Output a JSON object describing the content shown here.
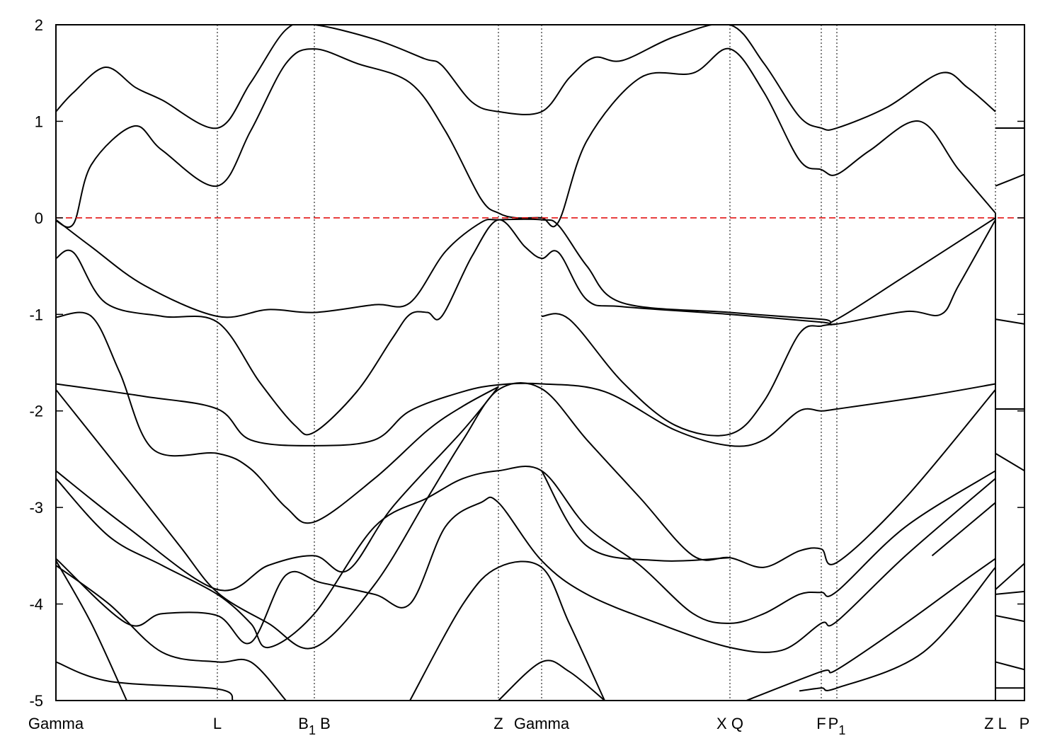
{
  "chart_data": {
    "type": "line",
    "title": "",
    "xlabel": "",
    "ylabel": "",
    "xlim": [
      0,
      5.472
    ],
    "ylim": [
      -5,
      2
    ],
    "yticks": [
      2,
      1,
      0,
      -1,
      -2,
      -3,
      -4,
      -5
    ],
    "grid": false,
    "fermi_level": 0,
    "colors": {
      "bands": "#000000",
      "fermi": "#e00000",
      "symmetry_lines": "#000000"
    },
    "xticks": [
      {
        "k": 0,
        "label": "Gamma",
        "sub": ""
      },
      {
        "k": 0.912,
        "label": "L",
        "sub": ""
      },
      {
        "k": 1.46,
        "label": "B",
        "sub": "1",
        "suffix": " B"
      },
      {
        "k": 2.5,
        "label": "Z",
        "sub": ""
      },
      {
        "k": 2.744,
        "label": "Gamma",
        "sub": ""
      },
      {
        "k": 3.808,
        "label": "X Q",
        "sub": ""
      },
      {
        "k": 4.324,
        "label": "F",
        "sub": ""
      },
      {
        "k": 4.412,
        "label": "P",
        "sub": "1"
      },
      {
        "k": 5.308,
        "label": "Z L",
        "sub": ""
      },
      {
        "k": 5.472,
        "label": "P",
        "sub": ""
      }
    ],
    "bands": [
      [
        [
          0,
          1.1
        ],
        [
          0.1,
          1.3
        ],
        [
          0.28,
          1.56
        ],
        [
          0.45,
          1.35
        ],
        [
          0.6,
          1.22
        ],
        [
          0.912,
          0.93
        ],
        [
          1.1,
          1.4
        ],
        [
          1.3,
          1.95
        ],
        [
          1.46,
          2.0
        ],
        [
          1.8,
          1.85
        ],
        [
          2.08,
          1.65
        ],
        [
          2.18,
          1.58
        ],
        [
          2.35,
          1.2
        ],
        [
          2.5,
          1.1
        ],
        [
          2.744,
          1.1
        ],
        [
          2.9,
          1.45
        ],
        [
          3.04,
          1.66
        ],
        [
          3.2,
          1.63
        ],
        [
          3.5,
          1.88
        ],
        [
          3.808,
          2.0
        ],
        [
          4.0,
          1.6
        ],
        [
          4.2,
          1.05
        ],
        [
          4.324,
          0.93
        ],
        [
          4.412,
          0.93
        ],
        [
          4.7,
          1.15
        ],
        [
          5.0,
          1.5
        ],
        [
          5.15,
          1.35
        ],
        [
          5.308,
          1.1
        ]
      ],
      [
        [
          0,
          -0.03
        ],
        [
          0.1,
          -0.06
        ],
        [
          0.2,
          0.55
        ],
        [
          0.44,
          0.95
        ],
        [
          0.6,
          0.7
        ],
        [
          0.912,
          0.33
        ],
        [
          1.1,
          0.9
        ],
        [
          1.3,
          1.6
        ],
        [
          1.46,
          1.75
        ],
        [
          1.7,
          1.6
        ],
        [
          2.0,
          1.4
        ],
        [
          2.2,
          0.9
        ],
        [
          2.4,
          0.2
        ],
        [
          2.5,
          0.05
        ],
        [
          2.6,
          0.0
        ],
        [
          2.744,
          0.0
        ],
        [
          2.84,
          -0.04
        ],
        [
          3.0,
          0.8
        ],
        [
          3.3,
          1.45
        ],
        [
          3.6,
          1.5
        ],
        [
          3.808,
          1.75
        ],
        [
          4.0,
          1.3
        ],
        [
          4.2,
          0.6
        ],
        [
          4.324,
          0.5
        ],
        [
          4.412,
          0.45
        ],
        [
          4.6,
          0.7
        ],
        [
          4.88,
          1.0
        ],
        [
          5.1,
          0.5
        ],
        [
          5.308,
          0.05
        ]
      ],
      [
        [
          0,
          -0.02
        ],
        [
          0.2,
          -0.3
        ],
        [
          0.5,
          -0.7
        ],
        [
          0.912,
          -1.02
        ],
        [
          1.2,
          -0.95
        ],
        [
          1.46,
          -0.98
        ],
        [
          1.8,
          -0.9
        ],
        [
          2.0,
          -0.88
        ],
        [
          2.2,
          -0.35
        ],
        [
          2.4,
          -0.05
        ],
        [
          2.5,
          -0.02
        ],
        [
          2.744,
          -0.02
        ],
        [
          2.84,
          -0.08
        ],
        [
          3.0,
          -0.5
        ],
        [
          3.2,
          -0.88
        ],
        [
          3.808,
          -0.98
        ],
        [
          4.324,
          -1.05
        ],
        [
          4.412,
          -1.05
        ],
        [
          4.8,
          -0.6
        ],
        [
          5.308,
          0.0
        ]
      ],
      [
        [
          0,
          -0.42
        ],
        [
          0.1,
          -0.36
        ],
        [
          0.28,
          -0.88
        ],
        [
          0.6,
          -1.02
        ],
        [
          0.912,
          -1.08
        ],
        [
          1.15,
          -1.7
        ],
        [
          1.35,
          -2.15
        ],
        [
          1.46,
          -2.22
        ],
        [
          1.7,
          -1.8
        ],
        [
          1.9,
          -1.25
        ],
        [
          2.0,
          -1.0
        ],
        [
          2.1,
          -0.98
        ],
        [
          2.18,
          -1.02
        ],
        [
          2.35,
          -0.4
        ],
        [
          2.5,
          -0.02
        ],
        [
          2.65,
          -0.3
        ],
        [
          2.744,
          -0.42
        ],
        [
          2.84,
          -0.36
        ],
        [
          3.0,
          -0.85
        ],
        [
          3.2,
          -0.92
        ],
        [
          3.808,
          -1.0
        ],
        [
          4.324,
          -1.08
        ],
        [
          4.412,
          -1.1
        ],
        [
          4.8,
          -0.97
        ],
        [
          5.0,
          -1.0
        ],
        [
          5.1,
          -0.7
        ],
        [
          5.308,
          -0.02
        ]
      ],
      [
        [
          0,
          -1.03
        ],
        [
          0.2,
          -1.02
        ],
        [
          0.36,
          -1.6
        ],
        [
          0.55,
          -2.4
        ],
        [
          0.912,
          -2.44
        ],
        [
          1.1,
          -2.6
        ],
        [
          1.3,
          -3.0
        ],
        [
          1.46,
          -3.15
        ],
        [
          1.8,
          -2.7
        ],
        [
          2.1,
          -2.2
        ],
        [
          2.3,
          -1.95
        ],
        [
          2.5,
          -1.75
        ]
      ],
      [
        [
          2.744,
          -1.02
        ],
        [
          2.9,
          -1.05
        ],
        [
          3.2,
          -1.7
        ],
        [
          3.5,
          -2.15
        ],
        [
          3.808,
          -2.24
        ],
        [
          4.0,
          -1.9
        ],
        [
          4.2,
          -1.2
        ],
        [
          4.324,
          -1.12
        ],
        [
          4.412,
          -1.1
        ]
      ],
      [
        [
          0,
          -1.72
        ],
        [
          0.5,
          -1.85
        ],
        [
          0.912,
          -1.98
        ],
        [
          1.1,
          -2.3
        ],
        [
          1.46,
          -2.36
        ],
        [
          1.8,
          -2.3
        ],
        [
          2.0,
          -2.0
        ],
        [
          2.3,
          -1.8
        ],
        [
          2.5,
          -1.73
        ],
        [
          2.744,
          -1.72
        ],
        [
          3.1,
          -1.8
        ],
        [
          3.5,
          -2.2
        ],
        [
          3.808,
          -2.36
        ],
        [
          4.0,
          -2.3
        ],
        [
          4.2,
          -2.0
        ],
        [
          4.324,
          -2.0
        ],
        [
          4.412,
          -1.98
        ],
        [
          4.9,
          -1.85
        ],
        [
          5.308,
          -1.72
        ]
      ],
      [
        [
          0,
          -1.78
        ],
        [
          0.4,
          -2.7
        ],
        [
          0.7,
          -3.4
        ],
        [
          0.912,
          -3.88
        ],
        [
          1.2,
          -4.2
        ],
        [
          1.46,
          -4.45
        ],
        [
          1.8,
          -3.8
        ],
        [
          2.1,
          -2.9
        ],
        [
          2.3,
          -2.3
        ],
        [
          2.5,
          -1.78
        ],
        [
          2.744,
          -1.77
        ],
        [
          3.0,
          -2.3
        ],
        [
          3.3,
          -2.9
        ],
        [
          3.6,
          -3.5
        ],
        [
          3.808,
          -3.52
        ],
        [
          4.0,
          -3.62
        ],
        [
          4.2,
          -3.45
        ],
        [
          4.324,
          -3.43
        ],
        [
          4.412,
          -3.57
        ],
        [
          4.8,
          -2.9
        ],
        [
          5.308,
          -1.78
        ]
      ],
      [
        [
          0,
          -2.62
        ],
        [
          0.4,
          -3.2
        ],
        [
          0.912,
          -3.85
        ],
        [
          1.2,
          -3.6
        ],
        [
          1.46,
          -3.5
        ],
        [
          1.65,
          -3.65
        ],
        [
          1.9,
          -3.0
        ],
        [
          2.3,
          -2.2
        ],
        [
          2.5,
          -1.75
        ]
      ],
      [
        [
          2.744,
          -2.62
        ],
        [
          3.0,
          -3.4
        ],
        [
          3.4,
          -3.55
        ],
        [
          3.808,
          -3.52
        ]
      ],
      [
        [
          0,
          -2.7
        ],
        [
          0.3,
          -3.3
        ],
        [
          0.6,
          -3.6
        ],
        [
          0.912,
          -3.9
        ],
        [
          1.1,
          -4.2
        ],
        [
          1.2,
          -4.45
        ],
        [
          1.46,
          -4.1
        ],
        [
          1.8,
          -3.2
        ],
        [
          2.1,
          -2.9
        ],
        [
          2.3,
          -2.7
        ],
        [
          2.5,
          -2.62
        ],
        [
          2.744,
          -2.62
        ],
        [
          3.0,
          -3.2
        ],
        [
          3.3,
          -3.6
        ],
        [
          3.6,
          -4.1
        ],
        [
          3.808,
          -4.2
        ],
        [
          4.0,
          -4.1
        ],
        [
          4.2,
          -3.9
        ],
        [
          4.324,
          -3.88
        ],
        [
          4.412,
          -3.87
        ],
        [
          4.8,
          -3.2
        ],
        [
          5.308,
          -2.62
        ]
      ],
      [
        [
          0,
          -3.53
        ],
        [
          0.4,
          -4.2
        ],
        [
          0.6,
          -4.1
        ],
        [
          0.912,
          -4.12
        ],
        [
          1.1,
          -4.4
        ],
        [
          1.3,
          -3.7
        ],
        [
          1.5,
          -3.78
        ],
        [
          1.8,
          -3.9
        ],
        [
          2.0,
          -4.0
        ],
        [
          2.2,
          -3.2
        ],
        [
          2.4,
          -2.95
        ],
        [
          2.5,
          -2.95
        ],
        [
          2.744,
          -3.55
        ],
        [
          3.0,
          -3.9
        ],
        [
          3.4,
          -4.2
        ],
        [
          3.808,
          -4.45
        ],
        [
          4.1,
          -4.48
        ],
        [
          4.324,
          -4.2
        ],
        [
          4.412,
          -4.18
        ],
        [
          4.8,
          -3.5
        ],
        [
          5.308,
          -2.7
        ]
      ],
      [
        [
          0,
          -3.6
        ],
        [
          0.3,
          -4.0
        ],
        [
          0.6,
          -4.5
        ],
        [
          0.912,
          -4.6
        ],
        [
          1.1,
          -4.6
        ],
        [
          1.3,
          -5.0
        ]
      ],
      [
        [
          2.0,
          -5.0
        ],
        [
          2.3,
          -4.0
        ],
        [
          2.5,
          -3.62
        ],
        [
          2.744,
          -3.62
        ],
        [
          2.9,
          -4.2
        ],
        [
          3.1,
          -5.0
        ]
      ],
      [
        [
          3.9,
          -5.0
        ],
        [
          4.324,
          -4.7
        ],
        [
          4.412,
          -4.68
        ],
        [
          4.8,
          -4.2
        ],
        [
          5.1,
          -3.8
        ],
        [
          5.308,
          -3.53
        ]
      ],
      [
        [
          0,
          -4.6
        ],
        [
          0.3,
          -4.8
        ],
        [
          0.912,
          -4.88
        ],
        [
          1.0,
          -5.0
        ]
      ],
      [
        [
          2.5,
          -5.0
        ],
        [
          2.744,
          -4.6
        ],
        [
          2.9,
          -4.7
        ],
        [
          3.1,
          -5.0
        ]
      ],
      [
        [
          4.2,
          -4.9
        ],
        [
          4.324,
          -4.87
        ],
        [
          4.412,
          -4.87
        ],
        [
          4.9,
          -4.5
        ],
        [
          5.308,
          -3.62
        ]
      ],
      [
        [
          0,
          -3.55
        ],
        [
          0.2,
          -4.2
        ],
        [
          0.4,
          -5.0
        ]
      ],
      [
        [
          4.95,
          -3.5
        ],
        [
          5.308,
          -2.95
        ]
      ],
      [
        [
          5.308,
          0.93
        ],
        [
          5.472,
          0.93
        ]
      ],
      [
        [
          5.308,
          0.33
        ],
        [
          5.472,
          0.45
        ]
      ],
      [
        [
          5.308,
          -1.05
        ],
        [
          5.472,
          -1.1
        ]
      ],
      [
        [
          5.308,
          -1.98
        ],
        [
          5.472,
          -1.98
        ]
      ],
      [
        [
          5.308,
          -2.44
        ],
        [
          5.472,
          -2.62
        ]
      ],
      [
        [
          5.308,
          -3.85
        ],
        [
          5.472,
          -3.58
        ]
      ],
      [
        [
          5.308,
          -3.9
        ],
        [
          5.472,
          -3.87
        ]
      ],
      [
        [
          5.308,
          -4.12
        ],
        [
          5.472,
          -4.18
        ]
      ],
      [
        [
          5.308,
          -4.6
        ],
        [
          5.472,
          -4.68
        ]
      ],
      [
        [
          5.308,
          -4.87
        ],
        [
          5.472,
          -4.87
        ]
      ]
    ]
  }
}
